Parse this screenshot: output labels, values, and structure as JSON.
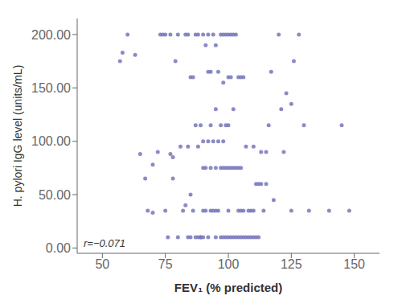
{
  "chart_data": {
    "type": "scatter",
    "xlabel": "FEV₁ (% predicted)",
    "ylabel": "H. pylori IgG level (units/mL)",
    "annotation": "r=−0.071",
    "color": "#7777bb",
    "x": [
      57,
      58,
      60,
      63,
      65,
      67,
      68,
      70,
      70,
      72,
      73,
      74,
      75,
      75,
      76,
      77,
      77,
      78,
      78,
      79,
      80,
      80,
      81,
      82,
      83,
      83,
      84,
      84,
      84,
      85,
      85,
      85,
      86,
      86,
      87,
      87,
      87,
      88,
      88,
      88,
      89,
      89,
      89,
      90,
      90,
      90,
      90,
      90,
      91,
      91,
      91,
      92,
      92,
      92,
      92,
      93,
      93,
      93,
      93,
      94,
      94,
      94,
      95,
      95,
      95,
      95,
      95,
      96,
      96,
      96,
      97,
      97,
      97,
      97,
      98,
      98,
      98,
      98,
      98,
      99,
      99,
      99,
      99,
      100,
      100,
      100,
      100,
      100,
      100,
      101,
      101,
      101,
      101,
      102,
      102,
      102,
      102,
      103,
      103,
      103,
      104,
      104,
      104,
      104,
      105,
      105,
      105,
      105,
      106,
      106,
      106,
      107,
      107,
      108,
      108,
      109,
      109,
      110,
      110,
      110,
      111,
      111,
      112,
      112,
      113,
      113,
      114,
      115,
      115,
      116,
      117,
      118,
      120,
      121,
      122,
      123,
      125,
      125,
      126,
      128,
      130,
      132,
      140,
      145,
      148
    ],
    "values": [
      175,
      183,
      200,
      181,
      88,
      65,
      35,
      33,
      78,
      90,
      200,
      200,
      200,
      35,
      10,
      88,
      200,
      65,
      85,
      175,
      10,
      200,
      95,
      35,
      40,
      200,
      10,
      95,
      200,
      10,
      50,
      160,
      35,
      160,
      10,
      115,
      200,
      10,
      95,
      200,
      10,
      10,
      115,
      10,
      35,
      75,
      100,
      200,
      35,
      75,
      190,
      10,
      100,
      165,
      200,
      35,
      75,
      115,
      165,
      35,
      100,
      200,
      10,
      35,
      75,
      130,
      190,
      35,
      100,
      165,
      10,
      75,
      115,
      200,
      10,
      75,
      100,
      155,
      200,
      10,
      75,
      115,
      200,
      10,
      35,
      75,
      115,
      160,
      200,
      10,
      75,
      160,
      200,
      10,
      75,
      130,
      200,
      10,
      75,
      200,
      10,
      35,
      75,
      160,
      10,
      35,
      75,
      160,
      10,
      35,
      160,
      10,
      95,
      10,
      35,
      10,
      35,
      10,
      35,
      95,
      10,
      60,
      10,
      60,
      60,
      90,
      35,
      60,
      90,
      115,
      165,
      45,
      200,
      130,
      90,
      145,
      35,
      135,
      175,
      200,
      115,
      35,
      35,
      115,
      35
    ],
    "xlim": [
      40,
      160
    ],
    "ylim": [
      -5,
      215
    ],
    "xticks": [
      50,
      75,
      100,
      125,
      150
    ],
    "yticks": [
      {
        "value": 0,
        "label": "0.00"
      },
      {
        "value": 50,
        "label": "50.00"
      },
      {
        "value": 100,
        "label": "100.00"
      },
      {
        "value": 150,
        "label": "150.00"
      },
      {
        "value": 200,
        "label": "200.00"
      }
    ],
    "grid": false
  }
}
